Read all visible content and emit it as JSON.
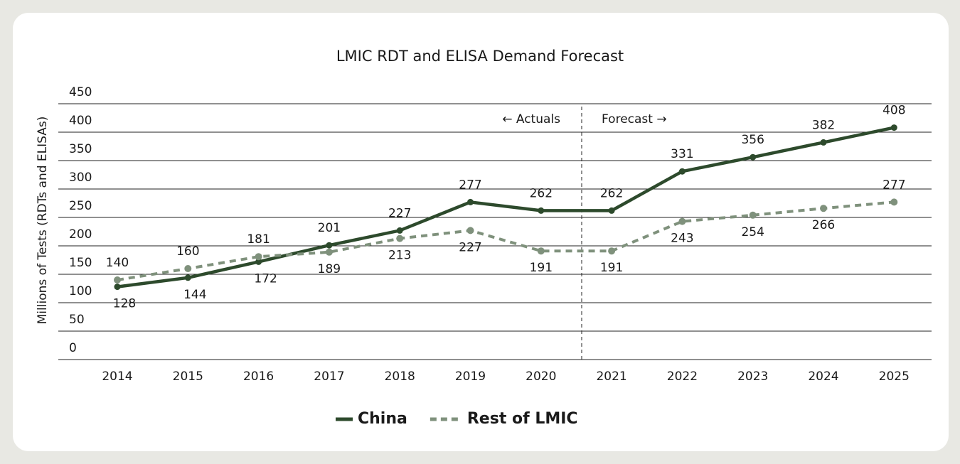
{
  "chart_data": {
    "type": "line",
    "title": "LMIC RDT and ELISA Demand Forecast",
    "y_label": "Millions of Tests (RDTs and ELISAs)",
    "annotations": [
      "← Actuals",
      "Forecast →"
    ],
    "categories": [
      "2014",
      "2015",
      "2016",
      "2017",
      "2018",
      "2019",
      "2020",
      "2021",
      "2022",
      "2023",
      "2024",
      "2025"
    ],
    "series": [
      {
        "name": "China",
        "color": "#2d4a2c",
        "dash": false,
        "values": [
          128,
          144,
          172,
          201,
          227,
          277,
          262,
          262,
          331,
          356,
          382,
          408
        ]
      },
      {
        "name": "Rest of LMIC",
        "color": "#7f917c",
        "dash": true,
        "values": [
          140,
          160,
          181,
          189,
          213,
          227,
          191,
          191,
          243,
          254,
          266,
          277
        ]
      }
    ],
    "ylim": [
      0,
      450
    ],
    "yticks": [
      0,
      50,
      100,
      150,
      200,
      250,
      300,
      350,
      400,
      450
    ],
    "grid": true
  }
}
